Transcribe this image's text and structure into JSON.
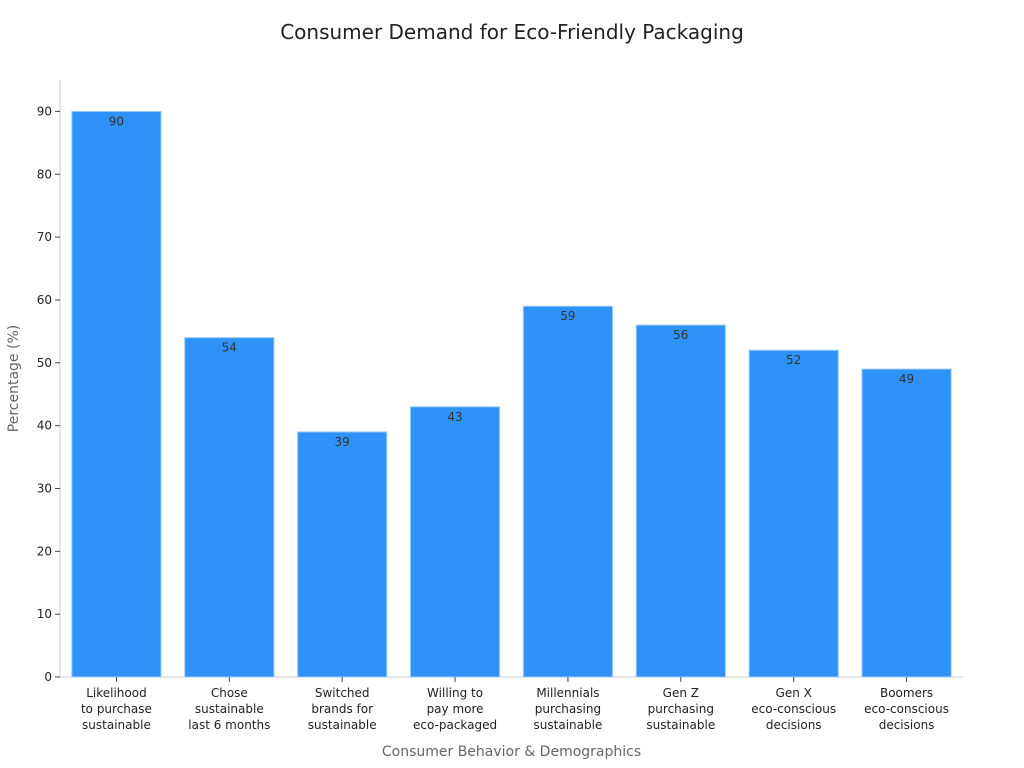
{
  "chart_data": {
    "type": "bar",
    "title": "Consumer Demand for Eco-Friendly Packaging",
    "xlabel": "Consumer Behavior & Demographics",
    "ylabel": "Percentage (%)",
    "ylim": [
      0,
      95
    ],
    "yticks": [
      0,
      10,
      20,
      30,
      40,
      50,
      60,
      70,
      80,
      90
    ],
    "categories": [
      [
        "Likelihood",
        "to purchase",
        "sustainable"
      ],
      [
        "Chose",
        "sustainable",
        "last 6 months"
      ],
      [
        "Switched",
        "brands for",
        "sustainable"
      ],
      [
        "Willing to",
        "pay more",
        "eco-packaged"
      ],
      [
        "Millennials",
        "purchasing",
        "sustainable"
      ],
      [
        "Gen Z",
        "purchasing",
        "sustainable"
      ],
      [
        "Gen X",
        "eco-conscious",
        "decisions"
      ],
      [
        "Boomers",
        "eco-conscious",
        "decisions"
      ]
    ],
    "values": [
      90,
      54,
      39,
      43,
      59,
      56,
      52,
      49
    ],
    "bar_color": "#2e92f9",
    "grid": false,
    "data_labels": true
  }
}
